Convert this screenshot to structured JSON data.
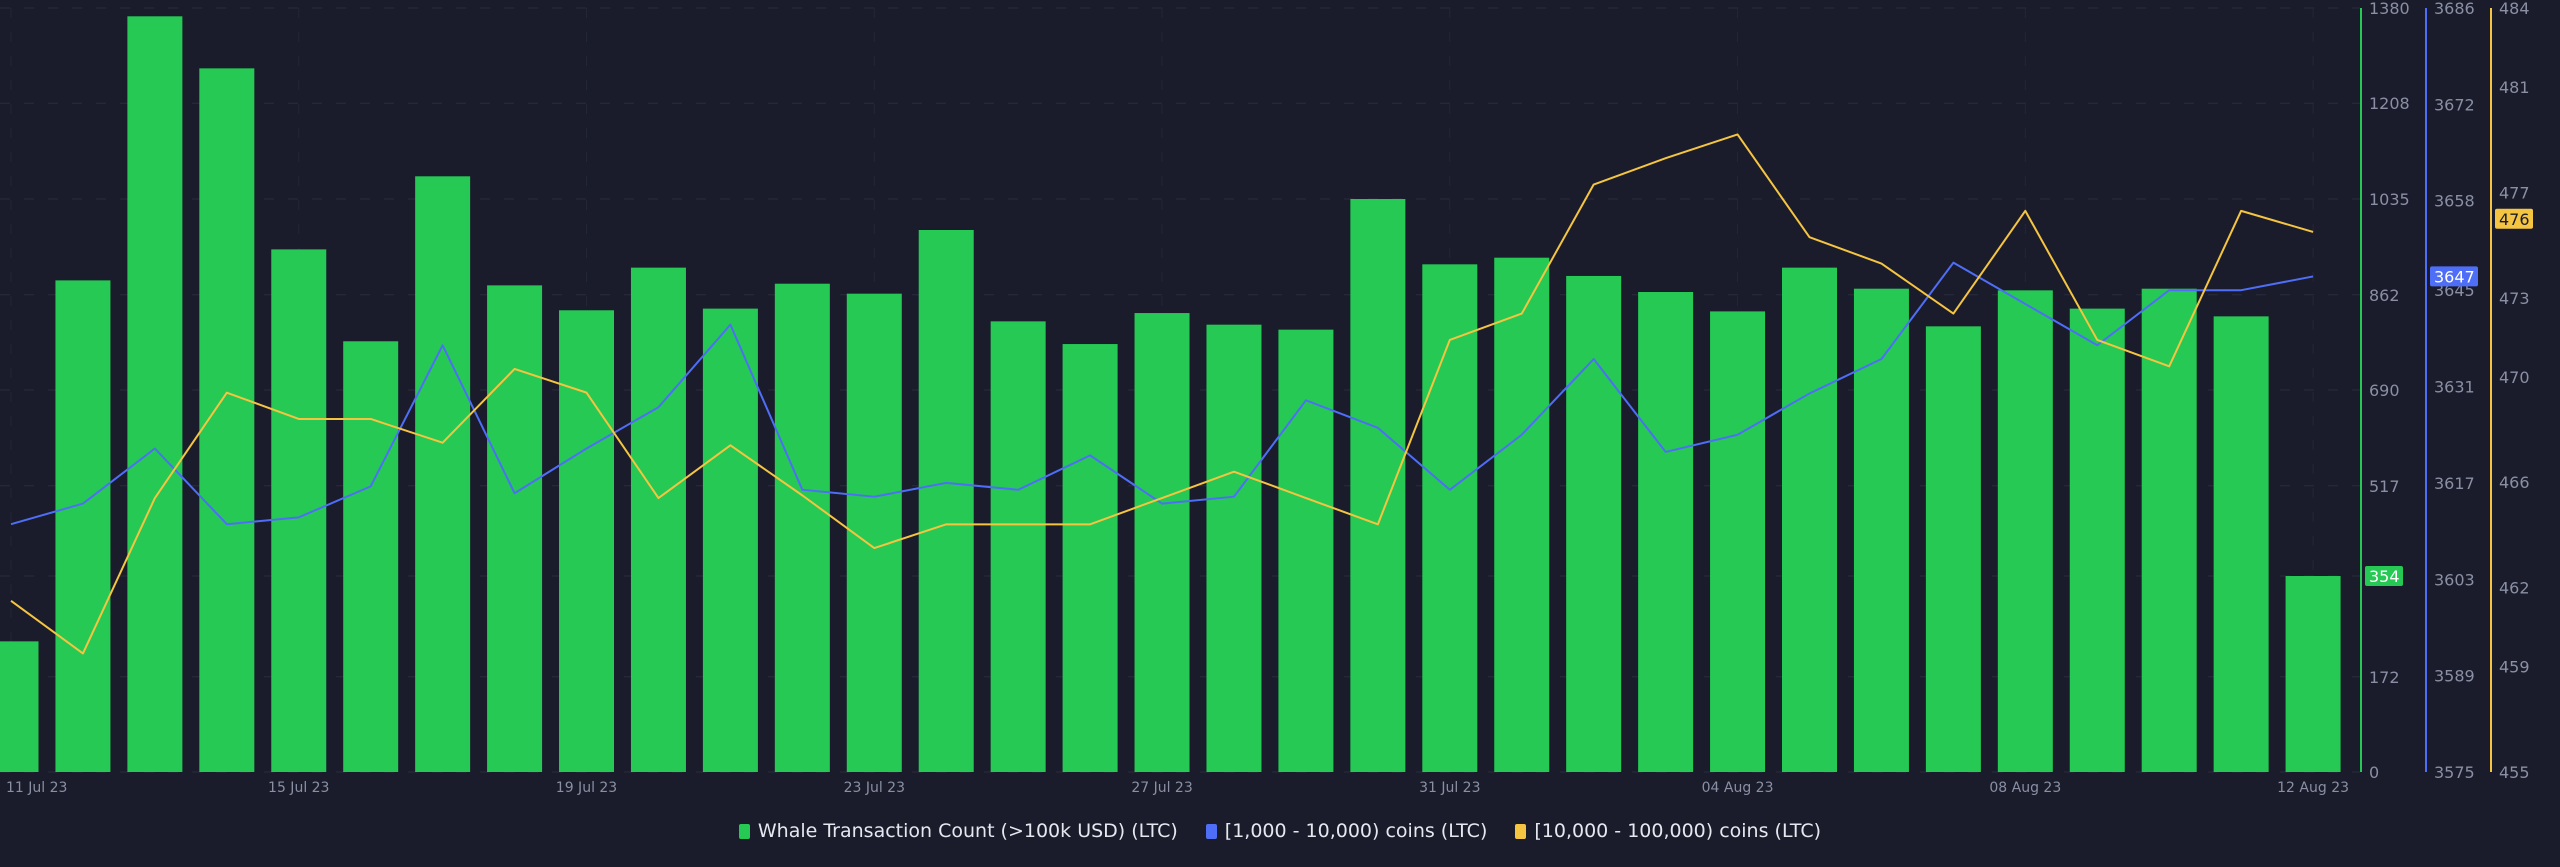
{
  "chart_data": {
    "type": "bar+line",
    "title": "",
    "x": [
      "11 Jul 23",
      "12 Jul 23",
      "13 Jul 23",
      "14 Jul 23",
      "15 Jul 23",
      "16 Jul 23",
      "17 Jul 23",
      "18 Jul 23",
      "19 Jul 23",
      "20 Jul 23",
      "21 Jul 23",
      "22 Jul 23",
      "23 Jul 23",
      "24 Jul 23",
      "25 Jul 23",
      "26 Jul 23",
      "27 Jul 23",
      "28 Jul 23",
      "29 Jul 23",
      "30 Jul 23",
      "31 Jul 23",
      "01 Aug 23",
      "02 Aug 23",
      "03 Aug 23",
      "04 Aug 23",
      "05 Aug 23",
      "06 Aug 23",
      "07 Aug 23",
      "08 Aug 23",
      "09 Aug 23",
      "10 Aug 23",
      "11 Aug 23",
      "12 Aug 23"
    ],
    "x_tick_labels": [
      "11 Jul 23",
      "15 Jul 23",
      "19 Jul 23",
      "23 Jul 23",
      "27 Jul 23",
      "31 Jul 23",
      "04 Aug 23",
      "08 Aug 23",
      "12 Aug 23"
    ],
    "series": [
      {
        "name": "Whale Transaction Count (>100k USD) (LTC)",
        "type": "bar",
        "axis": "y1",
        "color": "#26c953",
        "values": [
          236,
          888,
          1365,
          1271,
          944,
          778,
          1076,
          879,
          834,
          911,
          837,
          882,
          864,
          979,
          814,
          773,
          829,
          808,
          799,
          1035,
          917,
          929,
          896,
          867,
          832,
          911,
          873,
          805,
          870,
          837,
          873,
          823,
          354
        ],
        "last_label": "354"
      },
      {
        "name": "[1,000 - 10,000) coins (LTC)",
        "type": "line",
        "axis": "y2",
        "color": "#4f6ef7",
        "values": [
          3611,
          3614,
          3622,
          3611,
          3612,
          3616.5,
          3637,
          3615.5,
          3622,
          3628,
          3640,
          3616,
          3615,
          3617,
          3616,
          3621,
          3614,
          3615,
          3629,
          3625,
          3616,
          3624,
          3635,
          3621.5,
          3624,
          3630,
          3635,
          3649,
          3643,
          3637,
          3645,
          3645,
          3647
        ],
        "last_label": "3647"
      },
      {
        "name": "[10,000 - 100,000) coins (LTC)",
        "type": "line",
        "axis": "y3",
        "color": "#f5c542",
        "values": [
          461.5,
          459.5,
          465.4,
          469.4,
          468.4,
          468.4,
          467.5,
          470.3,
          469.4,
          465.4,
          467.4,
          465.5,
          463.5,
          464.4,
          464.4,
          464.4,
          465.4,
          466.4,
          465.4,
          464.4,
          471.4,
          472.4,
          477.3,
          478.3,
          479.2,
          475.3,
          474.3,
          472.4,
          476.3,
          471.4,
          470.4,
          476.3,
          475.5
        ],
        "last_label": "476"
      }
    ],
    "axes": {
      "y1": {
        "range": [
          0,
          1380
        ],
        "ticks": [
          "0",
          "172",
          "354",
          "517",
          "690",
          "862",
          "1035",
          "1208",
          "1380"
        ],
        "color": "#26c953"
      },
      "y2": {
        "range": [
          3575,
          3686
        ],
        "ticks": [
          "3575",
          "3589",
          "3603",
          "3617",
          "3631",
          "3645",
          "3658",
          "3672",
          "3686"
        ],
        "color": "#4f6ef7"
      },
      "y3": {
        "range": [
          455,
          484
        ],
        "ticks": [
          "455",
          "459",
          "462",
          "466",
          "470",
          "473",
          "477",
          "481",
          "484"
        ],
        "color": "#f5c542"
      }
    },
    "grid": true,
    "legend_position": "bottom"
  }
}
